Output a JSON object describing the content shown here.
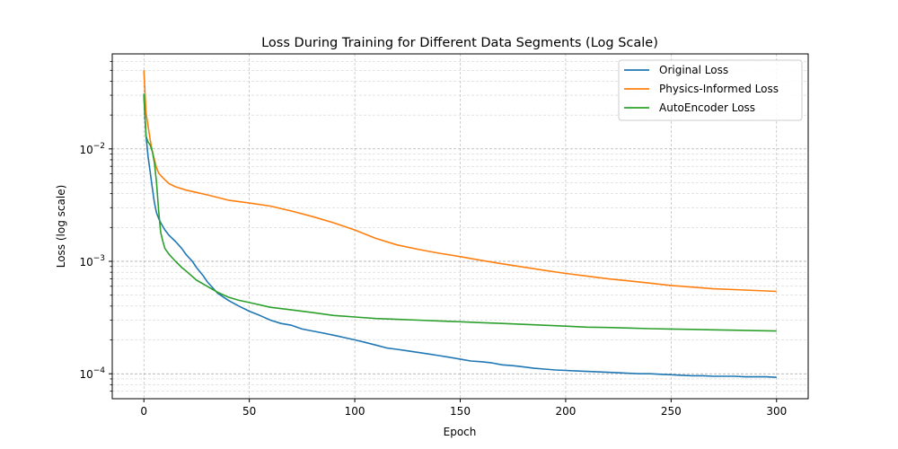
{
  "chart_data": {
    "type": "line",
    "title": "Loss During Training for Different Data Segments (Log Scale)",
    "xlabel": "Epoch",
    "ylabel": "Loss (log scale)",
    "xlim": [
      -15,
      315
    ],
    "ylim": [
      6e-05,
      0.07
    ],
    "y_scale": "log",
    "grid": true,
    "legend_position": "top-right",
    "x_ticks": [
      0,
      50,
      100,
      150,
      200,
      250,
      300
    ],
    "y_ticks": [
      {
        "value": 0.0001,
        "base": "10",
        "exp": "−4"
      },
      {
        "value": 0.001,
        "base": "10",
        "exp": "−3"
      },
      {
        "value": 0.01,
        "base": "10",
        "exp": "−2"
      }
    ],
    "series": [
      {
        "name": "Original Loss",
        "color": "#1f77b4",
        "x": [
          0,
          1,
          2,
          3,
          4,
          5,
          6,
          7,
          8,
          10,
          12,
          15,
          18,
          20,
          23,
          25,
          28,
          30,
          35,
          40,
          45,
          50,
          55,
          60,
          65,
          70,
          75,
          80,
          85,
          90,
          95,
          100,
          105,
          110,
          115,
          120,
          125,
          130,
          135,
          140,
          145,
          150,
          155,
          160,
          165,
          170,
          175,
          180,
          185,
          190,
          195,
          200,
          205,
          210,
          215,
          220,
          225,
          230,
          235,
          240,
          245,
          250,
          255,
          260,
          265,
          270,
          275,
          280,
          285,
          290,
          295,
          300
        ],
        "y": [
          0.03,
          0.013,
          0.0085,
          0.0062,
          0.0045,
          0.0033,
          0.0027,
          0.0024,
          0.0022,
          0.0019,
          0.0017,
          0.0015,
          0.0013,
          0.00115,
          0.001,
          0.00088,
          0.00075,
          0.00066,
          0.00052,
          0.00045,
          0.0004,
          0.00036,
          0.00033,
          0.0003,
          0.00028,
          0.00027,
          0.00025,
          0.00024,
          0.00023,
          0.00022,
          0.00021,
          0.0002,
          0.00019,
          0.00018,
          0.00017,
          0.000165,
          0.00016,
          0.000155,
          0.00015,
          0.000145,
          0.00014,
          0.000135,
          0.00013,
          0.000128,
          0.000125,
          0.00012,
          0.000118,
          0.000115,
          0.000112,
          0.00011,
          0.000108,
          0.000107,
          0.000106,
          0.000105,
          0.000104,
          0.000103,
          0.000102,
          0.000101,
          0.0001,
          0.0001,
          9.9e-05,
          9.8e-05,
          9.7e-05,
          9.6e-05,
          9.6e-05,
          9.5e-05,
          9.5e-05,
          9.5e-05,
          9.4e-05,
          9.4e-05,
          9.4e-05,
          9.3e-05
        ]
      },
      {
        "name": "Physics-Informed Loss",
        "color": "#ff7f0e",
        "x": [
          0,
          1,
          2,
          3,
          4,
          5,
          6,
          7,
          8,
          10,
          12,
          15,
          20,
          25,
          30,
          35,
          40,
          50,
          60,
          70,
          80,
          90,
          100,
          110,
          120,
          130,
          140,
          150,
          160,
          170,
          180,
          190,
          200,
          210,
          220,
          230,
          240,
          250,
          260,
          270,
          280,
          290,
          300
        ],
        "y": [
          0.05,
          0.021,
          0.016,
          0.012,
          0.0095,
          0.008,
          0.0068,
          0.0061,
          0.0058,
          0.0053,
          0.0049,
          0.0046,
          0.0043,
          0.0041,
          0.0039,
          0.0037,
          0.0035,
          0.0033,
          0.0031,
          0.0028,
          0.0025,
          0.0022,
          0.0019,
          0.0016,
          0.0014,
          0.00128,
          0.00118,
          0.0011,
          0.00102,
          0.00095,
          0.00089,
          0.00083,
          0.00078,
          0.00074,
          0.0007,
          0.00067,
          0.00064,
          0.00061,
          0.00059,
          0.00057,
          0.00056,
          0.00055,
          0.00054
        ]
      },
      {
        "name": "AutoEncoder Loss",
        "color": "#2ca02c",
        "x": [
          0,
          1,
          2,
          3,
          4,
          5,
          6,
          7,
          8,
          9,
          10,
          12,
          15,
          18,
          20,
          25,
          30,
          35,
          40,
          45,
          50,
          60,
          70,
          80,
          90,
          100,
          110,
          120,
          130,
          140,
          150,
          160,
          170,
          180,
          190,
          200,
          210,
          220,
          230,
          240,
          250,
          260,
          270,
          280,
          290,
          300
        ],
        "y": [
          0.031,
          0.013,
          0.0115,
          0.0108,
          0.0095,
          0.0075,
          0.005,
          0.0028,
          0.0018,
          0.0015,
          0.0013,
          0.00115,
          0.001,
          0.00088,
          0.00082,
          0.00068,
          0.0006,
          0.00053,
          0.00048,
          0.00045,
          0.00043,
          0.00039,
          0.00037,
          0.00035,
          0.00033,
          0.00032,
          0.00031,
          0.000305,
          0.0003,
          0.000295,
          0.00029,
          0.000285,
          0.00028,
          0.000275,
          0.00027,
          0.000265,
          0.00026,
          0.000258,
          0.000255,
          0.000252,
          0.00025,
          0.000248,
          0.000246,
          0.000244,
          0.000242,
          0.00024
        ]
      }
    ]
  }
}
